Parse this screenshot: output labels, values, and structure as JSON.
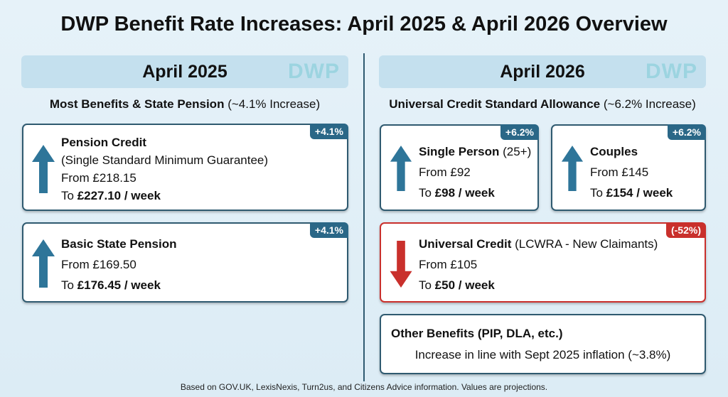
{
  "title": "DWP Benefit Rate Increases: April 2025 & April 2026 Overview",
  "watermark": "DWP",
  "colors": {
    "accent": "#2a6787",
    "decrease": "#c9302c",
    "header_bg": "#c4e0ee"
  },
  "left": {
    "heading": "April 2025",
    "subtitle_bold": "Most Benefits & State Pension",
    "subtitle_rest": " (~4.1% Increase)",
    "cards": [
      {
        "icon": "arrow-up-icon",
        "title": "Pension Credit",
        "note": "(Single Standard Minimum Guarantee)",
        "from": "From £218.15",
        "to_prefix": "To ",
        "to_value": "£227.10 / week",
        "badge": "+4.1%"
      },
      {
        "icon": "arrow-up-icon",
        "title": "Basic State Pension",
        "from": "From £169.50",
        "to_prefix": "To ",
        "to_value": "£176.45 / week",
        "badge": "+4.1%"
      }
    ]
  },
  "right": {
    "heading": "April 2026",
    "subtitle_bold": "Universal Credit Standard Allowance",
    "subtitle_rest": " (~6.2% Increase)",
    "cards": [
      {
        "icon": "arrow-up-icon",
        "title": "Single Person",
        "note": " (25+)",
        "from": "From £92",
        "to_prefix": "To ",
        "to_value": "£98 / week",
        "badge": "+6.2%"
      },
      {
        "icon": "arrow-up-icon",
        "title": "Couples",
        "from": "From £145",
        "to_prefix": "To ",
        "to_value": "£154 / week",
        "badge": "+6.2%"
      },
      {
        "icon": "arrow-down-icon",
        "title": "Universal Credit",
        "note": " (LCWRA - New Claimants)",
        "from": "From £105",
        "to_prefix": "To ",
        "to_value": "£50 / week",
        "badge": "(-52%)"
      }
    ],
    "other": {
      "title": "Other Benefits (PIP, DLA, etc.)",
      "text": "Increase in line with Sept 2025 inflation (~3.8%)"
    }
  },
  "footer": "Based on GOV.UK, LexisNexis, Turn2us, and Citizens Advice information. Values are projections."
}
